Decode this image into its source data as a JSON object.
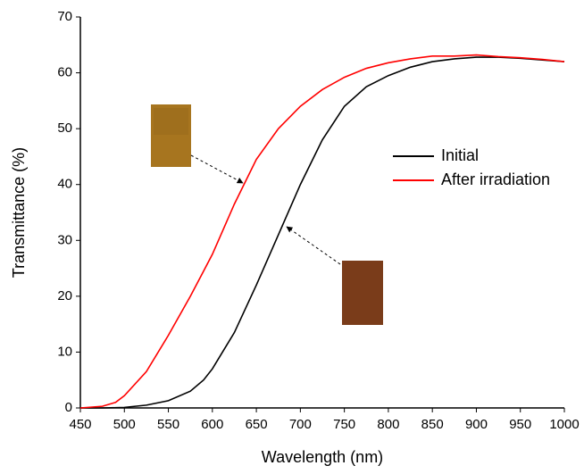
{
  "chart_data": {
    "type": "line",
    "x_label": "Wavelength (nm)",
    "y_label": "Transmittance (%)",
    "x": [
      450,
      475,
      490,
      500,
      525,
      550,
      575,
      590,
      600,
      625,
      650,
      675,
      700,
      725,
      750,
      775,
      800,
      825,
      850,
      875,
      900,
      925,
      950,
      975,
      1000
    ],
    "series": [
      {
        "name": "Initial",
        "color": "#000000",
        "values": [
          0,
          0,
          0.05,
          0.1,
          0.5,
          1.3,
          3,
          5,
          7,
          13.5,
          22,
          31,
          40,
          48,
          54,
          57.5,
          59.5,
          61,
          62,
          62.5,
          62.8,
          62.8,
          62.6,
          62.3,
          62
        ]
      },
      {
        "name": "After irradiation",
        "color": "#ff0000",
        "values": [
          0,
          0.3,
          1,
          2.2,
          6.5,
          13,
          20,
          24.5,
          27.5,
          36.5,
          44.5,
          50,
          54,
          57,
          59.2,
          60.8,
          61.8,
          62.5,
          63,
          63,
          63.2,
          62.9,
          62.7,
          62.4,
          62
        ]
      }
    ],
    "xlim": [
      450,
      1000
    ],
    "xticks": [
      450,
      500,
      550,
      600,
      650,
      700,
      750,
      800,
      850,
      900,
      950,
      1000
    ],
    "ylim": [
      0,
      70
    ],
    "yticks": [
      0,
      10,
      20,
      30,
      40,
      50,
      60,
      70
    ],
    "legend": "right"
  }
}
